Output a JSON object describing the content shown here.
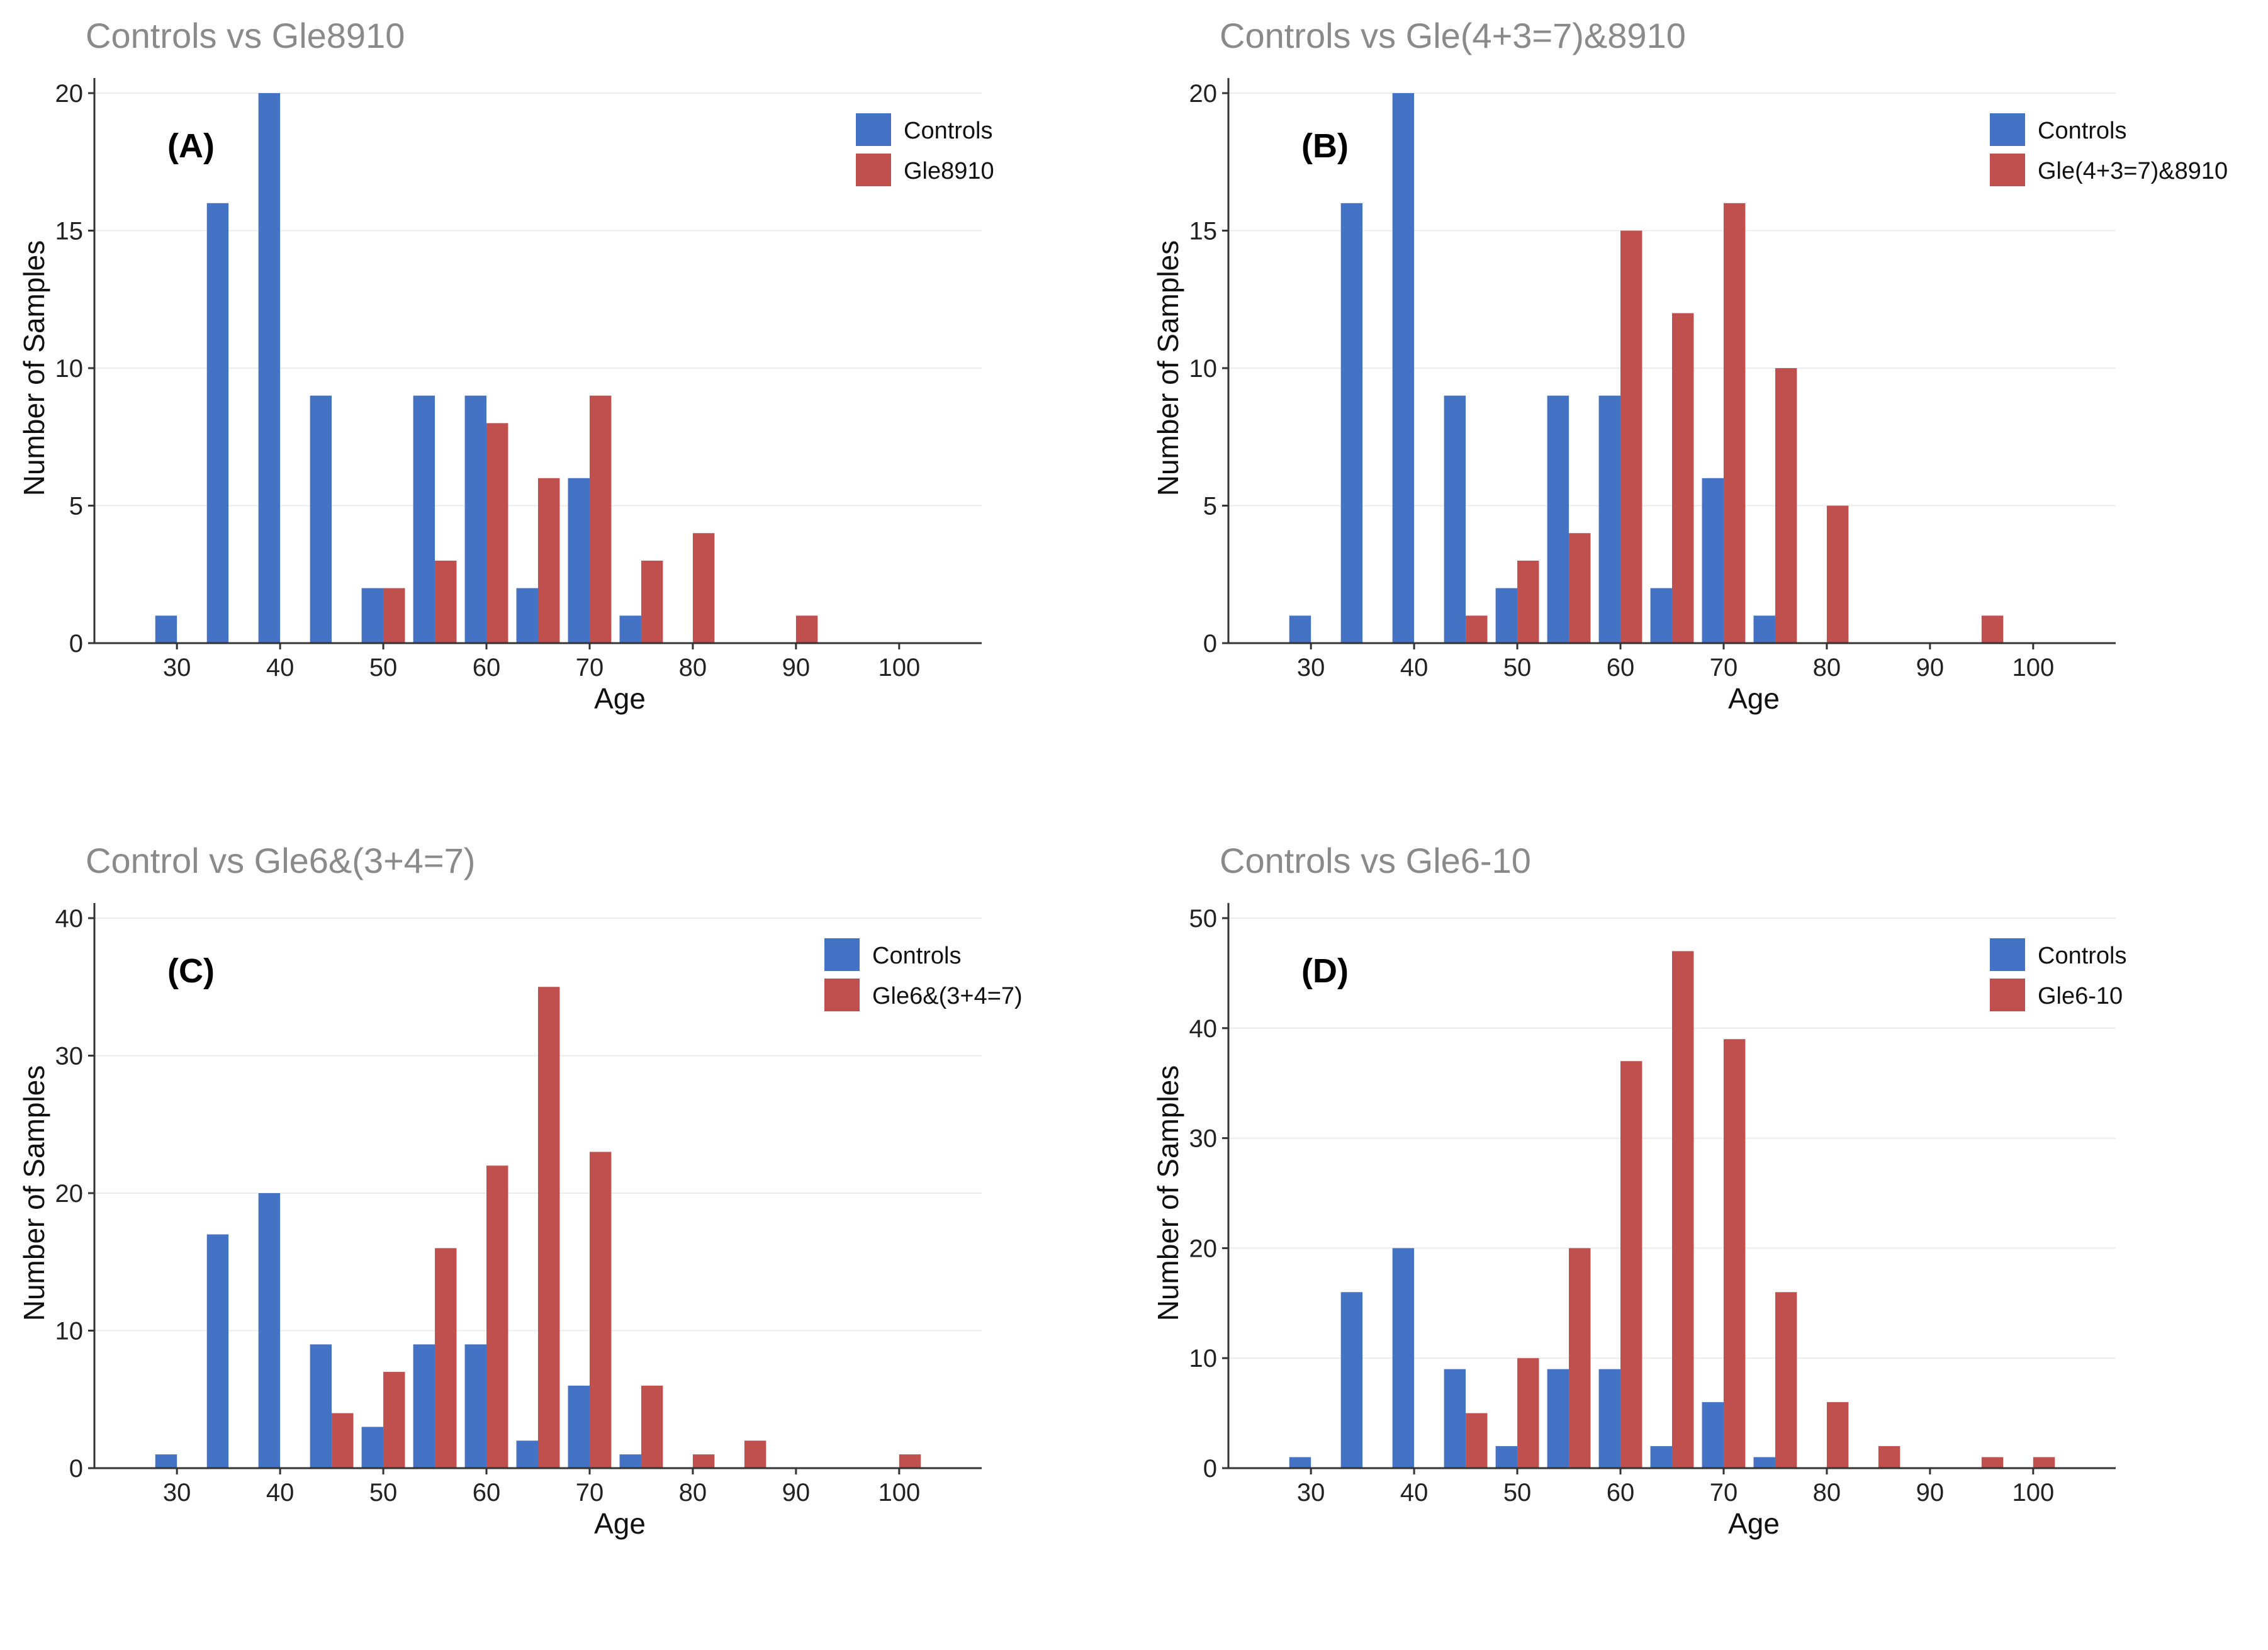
{
  "colors": {
    "controls": "#4472c4",
    "cases": "#c0504d"
  },
  "chart_data": [
    {
      "type": "bar",
      "title": "Controls vs Gle8910",
      "panel_label": "(A)",
      "xlabel": "Age",
      "ylabel": "Number of Samples",
      "xlim": [
        22,
        108
      ],
      "ylim": [
        0,
        20
      ],
      "xticks": [
        30,
        40,
        50,
        60,
        70,
        80,
        90,
        100
      ],
      "yticks": [
        0,
        5,
        10,
        15,
        20
      ],
      "legend": "top-right",
      "x": [
        30,
        35,
        40,
        45,
        50,
        55,
        60,
        65,
        70,
        75,
        80,
        85,
        90,
        95,
        100
      ],
      "series": [
        {
          "name": "Controls",
          "values": [
            1,
            16,
            20,
            9,
            2,
            9,
            9,
            2,
            6,
            1,
            0,
            0,
            0,
            0,
            0
          ]
        },
        {
          "name": "Gle8910",
          "values": [
            0,
            0,
            0,
            0,
            2,
            3,
            8,
            6,
            9,
            3,
            4,
            0,
            1,
            0,
            0
          ]
        }
      ]
    },
    {
      "type": "bar",
      "title": "Controls vs Gle(4+3=7)&8910",
      "panel_label": "(B)",
      "xlabel": "Age",
      "ylabel": "Number of Samples",
      "xlim": [
        22,
        108
      ],
      "ylim": [
        0,
        20
      ],
      "xticks": [
        30,
        40,
        50,
        60,
        70,
        80,
        90,
        100
      ],
      "yticks": [
        0,
        5,
        10,
        15,
        20
      ],
      "legend": "top-right",
      "x": [
        30,
        35,
        40,
        45,
        50,
        55,
        60,
        65,
        70,
        75,
        80,
        85,
        90,
        95,
        100
      ],
      "series": [
        {
          "name": "Controls",
          "values": [
            1,
            16,
            20,
            9,
            2,
            9,
            9,
            2,
            6,
            1,
            0,
            0,
            0,
            0,
            0
          ]
        },
        {
          "name": "Gle(4+3=7)&8910",
          "values": [
            0,
            0,
            0,
            1,
            3,
            4,
            15,
            12,
            16,
            10,
            5,
            0,
            0,
            1,
            0
          ]
        }
      ]
    },
    {
      "type": "bar",
      "title": "Control vs Gle6&(3+4=7)",
      "panel_label": "(C)",
      "xlabel": "Age",
      "ylabel": "Number of Samples",
      "xlim": [
        22,
        108
      ],
      "ylim": [
        0,
        40
      ],
      "xticks": [
        30,
        40,
        50,
        60,
        70,
        80,
        90,
        100
      ],
      "yticks": [
        0,
        10,
        20,
        30,
        40
      ],
      "legend": "top-right",
      "x": [
        30,
        35,
        40,
        45,
        50,
        55,
        60,
        65,
        70,
        75,
        80,
        85,
        90,
        95,
        100
      ],
      "series": [
        {
          "name": "Controls",
          "values": [
            1,
            17,
            20,
            9,
            3,
            9,
            9,
            2,
            6,
            1,
            0,
            0,
            0,
            0,
            0
          ]
        },
        {
          "name": "Gle6&(3+4=7)",
          "values": [
            0,
            0,
            0,
            4,
            7,
            16,
            22,
            35,
            23,
            6,
            1,
            2,
            0,
            0,
            1
          ]
        }
      ]
    },
    {
      "type": "bar",
      "title": "Controls vs Gle6-10",
      "panel_label": "(D)",
      "xlabel": "Age",
      "ylabel": "Number of Samples",
      "xlim": [
        22,
        108
      ],
      "ylim": [
        0,
        50
      ],
      "xticks": [
        30,
        40,
        50,
        60,
        70,
        80,
        90,
        100
      ],
      "yticks": [
        0,
        10,
        20,
        30,
        40,
        50
      ],
      "legend": "top-right",
      "x": [
        30,
        35,
        40,
        45,
        50,
        55,
        60,
        65,
        70,
        75,
        80,
        85,
        90,
        95,
        100
      ],
      "series": [
        {
          "name": "Controls",
          "values": [
            1,
            16,
            20,
            9,
            2,
            9,
            9,
            2,
            6,
            1,
            0,
            0,
            0,
            0,
            0
          ]
        },
        {
          "name": "Gle6-10",
          "values": [
            0,
            0,
            0,
            5,
            10,
            20,
            37,
            47,
            39,
            16,
            6,
            2,
            0,
            1,
            1
          ]
        }
      ]
    }
  ]
}
